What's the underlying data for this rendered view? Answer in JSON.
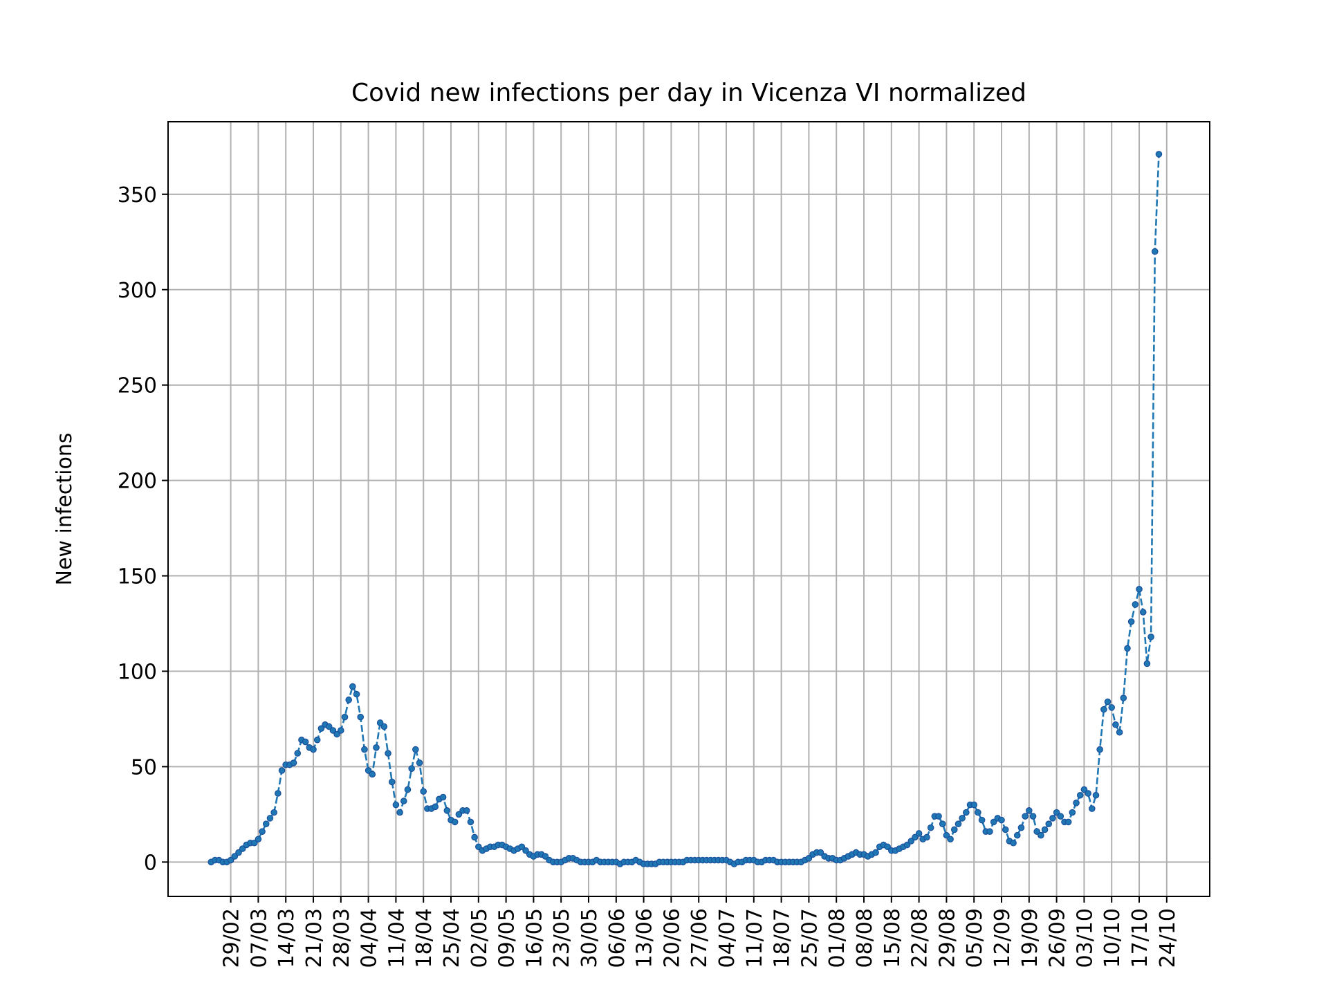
{
  "chart_data": {
    "type": "line",
    "title": "Covid new infections per day in Vicenza VI normalized",
    "xlabel": "",
    "ylabel": "New infections",
    "x_axis": {
      "type": "date",
      "start": "2020-02-24",
      "end": "2020-10-24",
      "tick_labels": [
        "29/02",
        "07/03",
        "14/03",
        "21/03",
        "28/03",
        "04/04",
        "11/04",
        "18/04",
        "25/04",
        "02/05",
        "09/05",
        "16/05",
        "23/05",
        "30/05",
        "06/06",
        "13/06",
        "20/06",
        "27/06",
        "04/07",
        "11/07",
        "18/07",
        "25/07",
        "01/08",
        "08/08",
        "15/08",
        "22/08",
        "29/08",
        "05/09",
        "12/09",
        "19/09",
        "26/09",
        "03/10",
        "10/10",
        "17/10",
        "24/10"
      ]
    },
    "ylim": [
      -18,
      388
    ],
    "yticks": [
      "0",
      "50",
      "100",
      "150",
      "200",
      "250",
      "300",
      "350"
    ],
    "grid": true,
    "line_style": "dashed",
    "marker": "dot",
    "color": "#1f77b4",
    "series": [
      {
        "name": "",
        "values": [
          0,
          1,
          1,
          0,
          0,
          1,
          3,
          5,
          7,
          9,
          10,
          10,
          12,
          16,
          20,
          23,
          26,
          36,
          48,
          51,
          51,
          52,
          57,
          64,
          63,
          60,
          59,
          64,
          70,
          72,
          71,
          69,
          67,
          69,
          76,
          85,
          92,
          88,
          76,
          59,
          48,
          46,
          60,
          73,
          71,
          57,
          42,
          30,
          26,
          32,
          38,
          49,
          59,
          52,
          37,
          28,
          28,
          29,
          33,
          34,
          27,
          22,
          21,
          25,
          27,
          27,
          21,
          13,
          8,
          6,
          7,
          8,
          8,
          9,
          9,
          8,
          7,
          6,
          7,
          8,
          6,
          4,
          3,
          4,
          4,
          3,
          1,
          0,
          0,
          0,
          1,
          2,
          2,
          1,
          0,
          0,
          0,
          0,
          1,
          0,
          0,
          0,
          0,
          0,
          -1,
          0,
          0,
          0,
          1,
          0,
          -1,
          -1,
          -1,
          -1,
          0,
          0,
          0,
          0,
          0,
          0,
          0,
          1,
          1,
          1,
          1,
          1,
          1,
          1,
          1,
          1,
          1,
          1,
          0,
          -1,
          0,
          0,
          1,
          1,
          1,
          0,
          0,
          1,
          1,
          1,
          0,
          0,
          0,
          0,
          0,
          0,
          0,
          1,
          2,
          4,
          5,
          5,
          3,
          2,
          2,
          1,
          1,
          2,
          3,
          4,
          5,
          4,
          4,
          3,
          4,
          5,
          8,
          9,
          8,
          6,
          6,
          7,
          8,
          9,
          11,
          13,
          15,
          12,
          13,
          18,
          24,
          24,
          20,
          14,
          12,
          17,
          20,
          23,
          26,
          30,
          30,
          26,
          22,
          16,
          16,
          21,
          23,
          22,
          17,
          11,
          10,
          14,
          18,
          24,
          27,
          24,
          16,
          14,
          17,
          20,
          23,
          26,
          24,
          21,
          21,
          26,
          31,
          35,
          38,
          36,
          28,
          35,
          59,
          80,
          84,
          81,
          72,
          68,
          86,
          112,
          126,
          135,
          143,
          131,
          104,
          118,
          320,
          371
        ]
      }
    ]
  }
}
